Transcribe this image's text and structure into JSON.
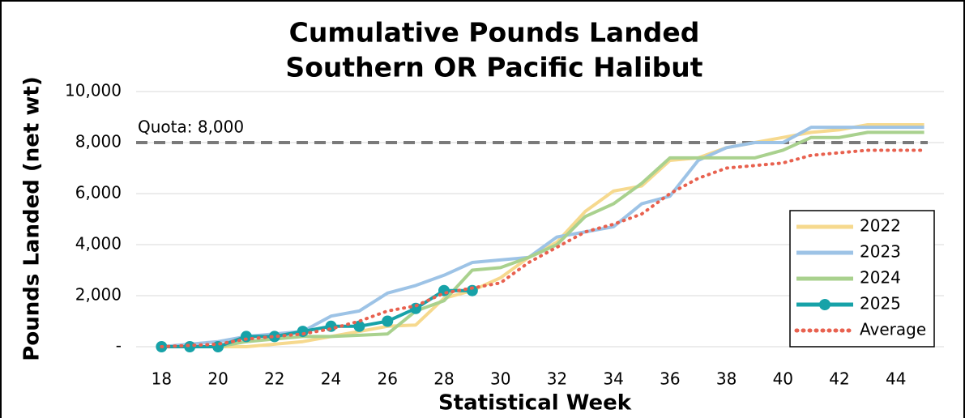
{
  "chart_data": {
    "type": "line",
    "title": "Cumulative Pounds Landed",
    "subtitle": "Southern OR Pacific Halibut",
    "x_label": "Statistical Week",
    "y_label": "Pounds Landed (net wt)",
    "x": [
      18,
      19,
      20,
      21,
      22,
      23,
      24,
      25,
      26,
      27,
      28,
      29,
      30,
      31,
      32,
      33,
      34,
      35,
      36,
      37,
      38,
      39,
      40,
      41,
      42,
      43,
      44,
      45
    ],
    "xlim": [
      17.1,
      45.7
    ],
    "xticks": [
      18,
      20,
      22,
      24,
      26,
      28,
      30,
      32,
      34,
      36,
      38,
      40,
      42,
      44
    ],
    "ylim": [
      0,
      10000
    ],
    "yticks": [
      {
        "value": 0,
        "label": "-"
      },
      {
        "value": 2000,
        "label": "2,000"
      },
      {
        "value": 4000,
        "label": "4,000"
      },
      {
        "value": 6000,
        "label": "6,000"
      },
      {
        "value": 8000,
        "label": "8,000"
      },
      {
        "value": 10000,
        "label": "10,000"
      }
    ],
    "grid": true,
    "legend": "lower-right",
    "quota": {
      "value": 8000,
      "label": "Quota: 8,000",
      "color": "#7a7a7a"
    },
    "series": [
      {
        "name": "2022",
        "color": "#f6d98e",
        "values": [
          0,
          0,
          0,
          0,
          100,
          200,
          400,
          600,
          800,
          850,
          1900,
          2200,
          2700,
          3500,
          4100,
          5300,
          6100,
          6300,
          7300,
          7400,
          7800,
          8000,
          8200,
          8400,
          8500,
          8700,
          8700,
          8700
        ]
      },
      {
        "name": "2023",
        "color": "#9dc3e6",
        "values": [
          0,
          100,
          200,
          400,
          500,
          600,
          1200,
          1400,
          2100,
          2400,
          2800,
          3300,
          3400,
          3500,
          4300,
          4500,
          4700,
          5600,
          5900,
          7300,
          7800,
          8000,
          8000,
          8600,
          8600,
          8600,
          8600,
          8600
        ]
      },
      {
        "name": "2024",
        "color": "#a9d18e",
        "values": [
          0,
          0,
          0,
          200,
          300,
          400,
          400,
          450,
          500,
          1400,
          1800,
          3000,
          3100,
          3500,
          4000,
          5100,
          5600,
          6400,
          7400,
          7400,
          7400,
          7400,
          7700,
          8200,
          8200,
          8400,
          8400,
          8400
        ]
      },
      {
        "name": "2025",
        "color": "#17a2a8",
        "markers": true,
        "values": [
          0,
          0,
          0,
          400,
          400,
          600,
          800,
          800,
          1000,
          1500,
          2200,
          2200,
          null,
          null,
          null,
          null,
          null,
          null,
          null,
          null,
          null,
          null,
          null,
          null,
          null,
          null,
          null,
          null
        ]
      },
      {
        "name": "Average",
        "color": "#e8614f",
        "dash": "dotted",
        "values": [
          0,
          50,
          100,
          300,
          400,
          500,
          700,
          1000,
          1400,
          1600,
          2100,
          2300,
          2500,
          3300,
          3900,
          4500,
          4800,
          5200,
          6000,
          6600,
          7000,
          7100,
          7200,
          7500,
          7600,
          7700,
          7700,
          7700
        ]
      }
    ]
  }
}
